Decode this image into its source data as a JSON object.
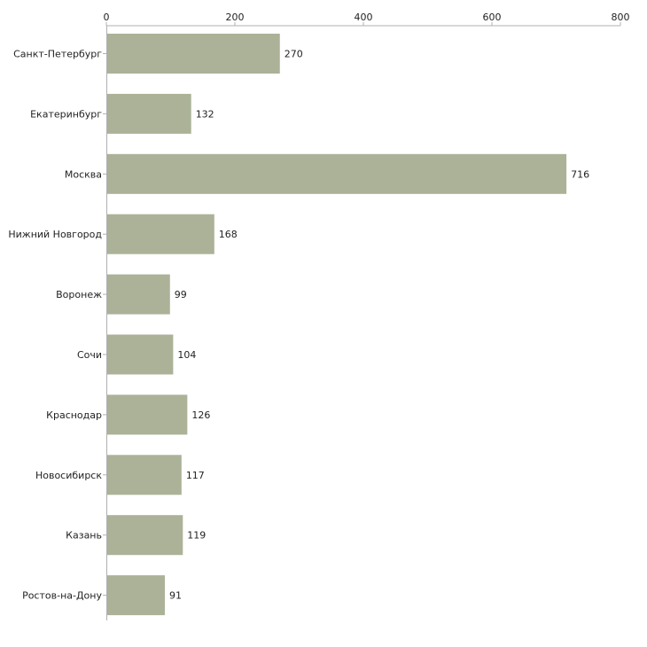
{
  "chart_data": {
    "type": "bar",
    "orientation": "horizontal",
    "title": "",
    "xlabel": "",
    "ylabel": "",
    "xlim": [
      0,
      800
    ],
    "ticks": [
      0,
      200,
      400,
      600,
      800
    ],
    "tick_labels": [
      "0",
      "200",
      "400",
      "600",
      "800"
    ],
    "categories": [
      "Санкт-Петербург",
      "Екатеринбург",
      "Москва",
      "Нижний Новгород",
      "Воронеж",
      "Сочи",
      "Краснодар",
      "Новосибирск",
      "Казань",
      "Ростов-на-Дону"
    ],
    "values": [
      270,
      132,
      716,
      168,
      99,
      104,
      126,
      117,
      119,
      91
    ],
    "value_labels": [
      "270",
      "132",
      "716",
      "168",
      "99",
      "104",
      "126",
      "117",
      "119",
      "91"
    ],
    "bar_color": "#abb298",
    "axis_position": "top",
    "grid": false
  }
}
